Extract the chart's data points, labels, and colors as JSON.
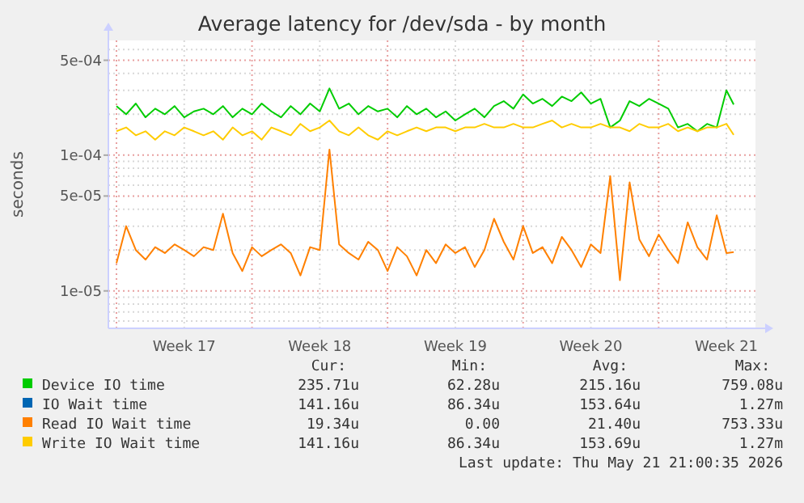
{
  "chart_data": {
    "type": "line",
    "title": "Average latency for /dev/sda - by month",
    "ylabel": "seconds",
    "log": true,
    "grid": true,
    "legend": "bottom",
    "marker": "none",
    "line_style": "solid",
    "xlim": [
      "2026-04-19T14:00",
      "2026-05-23T00:00"
    ],
    "xticks": [
      {
        "value": "2026-04-20T00:00",
        "label": null
      },
      {
        "value": "2026-04-23T12:00",
        "label": "Week 17"
      },
      {
        "value": "2026-04-27T00:00",
        "label": null
      },
      {
        "value": "2026-04-30T12:00",
        "label": "Week 18"
      },
      {
        "value": "2026-05-04T00:00",
        "label": null
      },
      {
        "value": "2026-05-07T12:00",
        "label": "Week 19"
      },
      {
        "value": "2026-05-11T00:00",
        "label": null
      },
      {
        "value": "2026-05-14T12:00",
        "label": "Week 20"
      },
      {
        "value": "2026-05-18T00:00",
        "label": null
      },
      {
        "value": "2026-05-21T12:00",
        "label": "Week 21"
      }
    ],
    "ylim": [
      5.3e-06,
      0.0007
    ],
    "yticks": [
      {
        "value": 6e-06,
        "label": null
      },
      {
        "value": 7e-06,
        "label": null
      },
      {
        "value": 8e-06,
        "label": null
      },
      {
        "value": 9e-06,
        "label": null
      },
      {
        "value": 1e-05,
        "label": "1e-05"
      },
      {
        "value": 2e-05,
        "label": null
      },
      {
        "value": 3e-05,
        "label": null
      },
      {
        "value": 4e-05,
        "label": null
      },
      {
        "value": 5e-05,
        "label": "5e-05"
      },
      {
        "value": 6e-05,
        "label": null
      },
      {
        "value": 7e-05,
        "label": null
      },
      {
        "value": 8e-05,
        "label": null
      },
      {
        "value": 9e-05,
        "label": null
      },
      {
        "value": 0.0001,
        "label": "1e-04"
      },
      {
        "value": 0.0002,
        "label": null
      },
      {
        "value": 0.0003,
        "label": null
      },
      {
        "value": 0.0004,
        "label": null
      },
      {
        "value": 0.0005,
        "label": "5e-04"
      },
      {
        "value": 0.0006,
        "label": null
      }
    ],
    "x": [
      "2026-04-20T00:00",
      "2026-04-20T12:00",
      "2026-04-21T00:00",
      "2026-04-21T12:00",
      "2026-04-22T00:00",
      "2026-04-22T12:00",
      "2026-04-23T00:00",
      "2026-04-23T12:00",
      "2026-04-24T00:00",
      "2026-04-24T12:00",
      "2026-04-25T00:00",
      "2026-04-25T12:00",
      "2026-04-26T00:00",
      "2026-04-26T12:00",
      "2026-04-27T00:00",
      "2026-04-27T12:00",
      "2026-04-28T00:00",
      "2026-04-28T12:00",
      "2026-04-29T00:00",
      "2026-04-29T12:00",
      "2026-04-30T00:00",
      "2026-04-30T12:00",
      "2026-05-01T00:00",
      "2026-05-01T12:00",
      "2026-05-02T00:00",
      "2026-05-02T12:00",
      "2026-05-03T00:00",
      "2026-05-03T12:00",
      "2026-05-04T00:00",
      "2026-05-04T12:00",
      "2026-05-05T00:00",
      "2026-05-05T12:00",
      "2026-05-06T00:00",
      "2026-05-06T12:00",
      "2026-05-07T00:00",
      "2026-05-07T12:00",
      "2026-05-08T00:00",
      "2026-05-08T12:00",
      "2026-05-09T00:00",
      "2026-05-09T12:00",
      "2026-05-10T00:00",
      "2026-05-10T12:00",
      "2026-05-11T00:00",
      "2026-05-11T12:00",
      "2026-05-12T00:00",
      "2026-05-12T12:00",
      "2026-05-13T00:00",
      "2026-05-13T12:00",
      "2026-05-14T00:00",
      "2026-05-14T12:00",
      "2026-05-15T00:00",
      "2026-05-15T12:00",
      "2026-05-16T00:00",
      "2026-05-16T12:00",
      "2026-05-17T00:00",
      "2026-05-17T12:00",
      "2026-05-18T00:00",
      "2026-05-18T12:00",
      "2026-05-19T00:00",
      "2026-05-19T12:00",
      "2026-05-20T00:00",
      "2026-05-20T12:00",
      "2026-05-21T00:00",
      "2026-05-21T12:00",
      "2026-05-21T21:00"
    ],
    "series": [
      {
        "name": "Device IO time",
        "color": "#00cc00",
        "values": [
          0.00023,
          0.0002,
          0.00024,
          0.00019,
          0.00022,
          0.0002,
          0.00023,
          0.00019,
          0.00021,
          0.00022,
          0.0002,
          0.00023,
          0.00019,
          0.00022,
          0.0002,
          0.00024,
          0.00021,
          0.00019,
          0.00023,
          0.0002,
          0.00024,
          0.00021,
          0.00031,
          0.00022,
          0.00024,
          0.0002,
          0.00023,
          0.00021,
          0.00022,
          0.00019,
          0.00023,
          0.0002,
          0.00022,
          0.00019,
          0.00021,
          0.00018,
          0.0002,
          0.00022,
          0.00019,
          0.00023,
          0.00025,
          0.00022,
          0.00028,
          0.00024,
          0.00026,
          0.00023,
          0.00027,
          0.00025,
          0.00029,
          0.00024,
          0.00026,
          0.00016,
          0.00018,
          0.00025,
          0.00023,
          0.00026,
          0.00024,
          0.00022,
          0.00016,
          0.00017,
          0.00015,
          0.00017,
          0.00016,
          0.0003,
          0.000236
        ]
      },
      {
        "name": "IO Wait time",
        "color": "#0066b3",
        "values": [
          null,
          null,
          null,
          null,
          null,
          null,
          null,
          null,
          null,
          null,
          null,
          null,
          null,
          null,
          null,
          null,
          null,
          null,
          null,
          null,
          null,
          null,
          null,
          null,
          null,
          null,
          null,
          null,
          null,
          null,
          null,
          null,
          null,
          null,
          null,
          null,
          null,
          null,
          null,
          null,
          null,
          null,
          null,
          null,
          null,
          null,
          null,
          null,
          null,
          null,
          null,
          null,
          null,
          null,
          null,
          null,
          null,
          null,
          null,
          null,
          null,
          null,
          null,
          null,
          null
        ]
      },
      {
        "name": "Read IO Wait time",
        "color": "#ff8000",
        "values": [
          1.6e-05,
          3e-05,
          2e-05,
          1.7e-05,
          2.1e-05,
          1.9e-05,
          2.2e-05,
          2e-05,
          1.8e-05,
          2.1e-05,
          2e-05,
          3.7e-05,
          1.9e-05,
          1.4e-05,
          2.1e-05,
          1.8e-05,
          2e-05,
          2.2e-05,
          1.9e-05,
          1.3e-05,
          2.1e-05,
          2e-05,
          0.00011,
          2.2e-05,
          1.9e-05,
          1.7e-05,
          2.3e-05,
          2e-05,
          1.4e-05,
          2.1e-05,
          1.8e-05,
          1.3e-05,
          2e-05,
          1.6e-05,
          2.2e-05,
          1.9e-05,
          2.1e-05,
          1.5e-05,
          2e-05,
          3.4e-05,
          2.3e-05,
          1.7e-05,
          3e-05,
          1.9e-05,
          2.1e-05,
          1.6e-05,
          2.5e-05,
          2e-05,
          1.5e-05,
          2.2e-05,
          1.9e-05,
          7e-05,
          1.2e-05,
          6.3e-05,
          2.4e-05,
          1.8e-05,
          2.6e-05,
          2e-05,
          1.6e-05,
          3.2e-05,
          2.1e-05,
          1.7e-05,
          3.6e-05,
          1.9e-05,
          1.93e-05
        ]
      },
      {
        "name": "Write IO Wait time",
        "color": "#ffcc00",
        "values": [
          0.00015,
          0.00016,
          0.00014,
          0.00015,
          0.00013,
          0.00015,
          0.00014,
          0.00016,
          0.00015,
          0.00014,
          0.00015,
          0.00013,
          0.00016,
          0.00014,
          0.00015,
          0.00013,
          0.00016,
          0.00015,
          0.00014,
          0.00017,
          0.00015,
          0.00016,
          0.00018,
          0.00015,
          0.00014,
          0.00016,
          0.00014,
          0.00013,
          0.00015,
          0.00014,
          0.00015,
          0.00016,
          0.00015,
          0.00016,
          0.00016,
          0.00015,
          0.00016,
          0.00016,
          0.00017,
          0.00016,
          0.00016,
          0.00017,
          0.00016,
          0.00016,
          0.00017,
          0.00018,
          0.00016,
          0.00017,
          0.00016,
          0.00016,
          0.00017,
          0.00016,
          0.00016,
          0.00015,
          0.00017,
          0.00016,
          0.00016,
          0.00017,
          0.00015,
          0.00016,
          0.00015,
          0.00016,
          0.00016,
          0.00017,
          0.000141
        ]
      }
    ],
    "annotations": [
      "Cur:",
      "Min:",
      "Avg:",
      "Max:",
      "235.71u",
      "62.28u",
      "215.16u",
      "759.08u",
      "141.16u",
      "86.34u",
      "153.64u",
      "1.27m",
      "19.34u",
      "0.00",
      "21.40u",
      "753.33u",
      "141.16u",
      "86.34u",
      "153.69u",
      "1.27m",
      "Last update: Thu May 21 21:00:35 2026"
    ]
  }
}
